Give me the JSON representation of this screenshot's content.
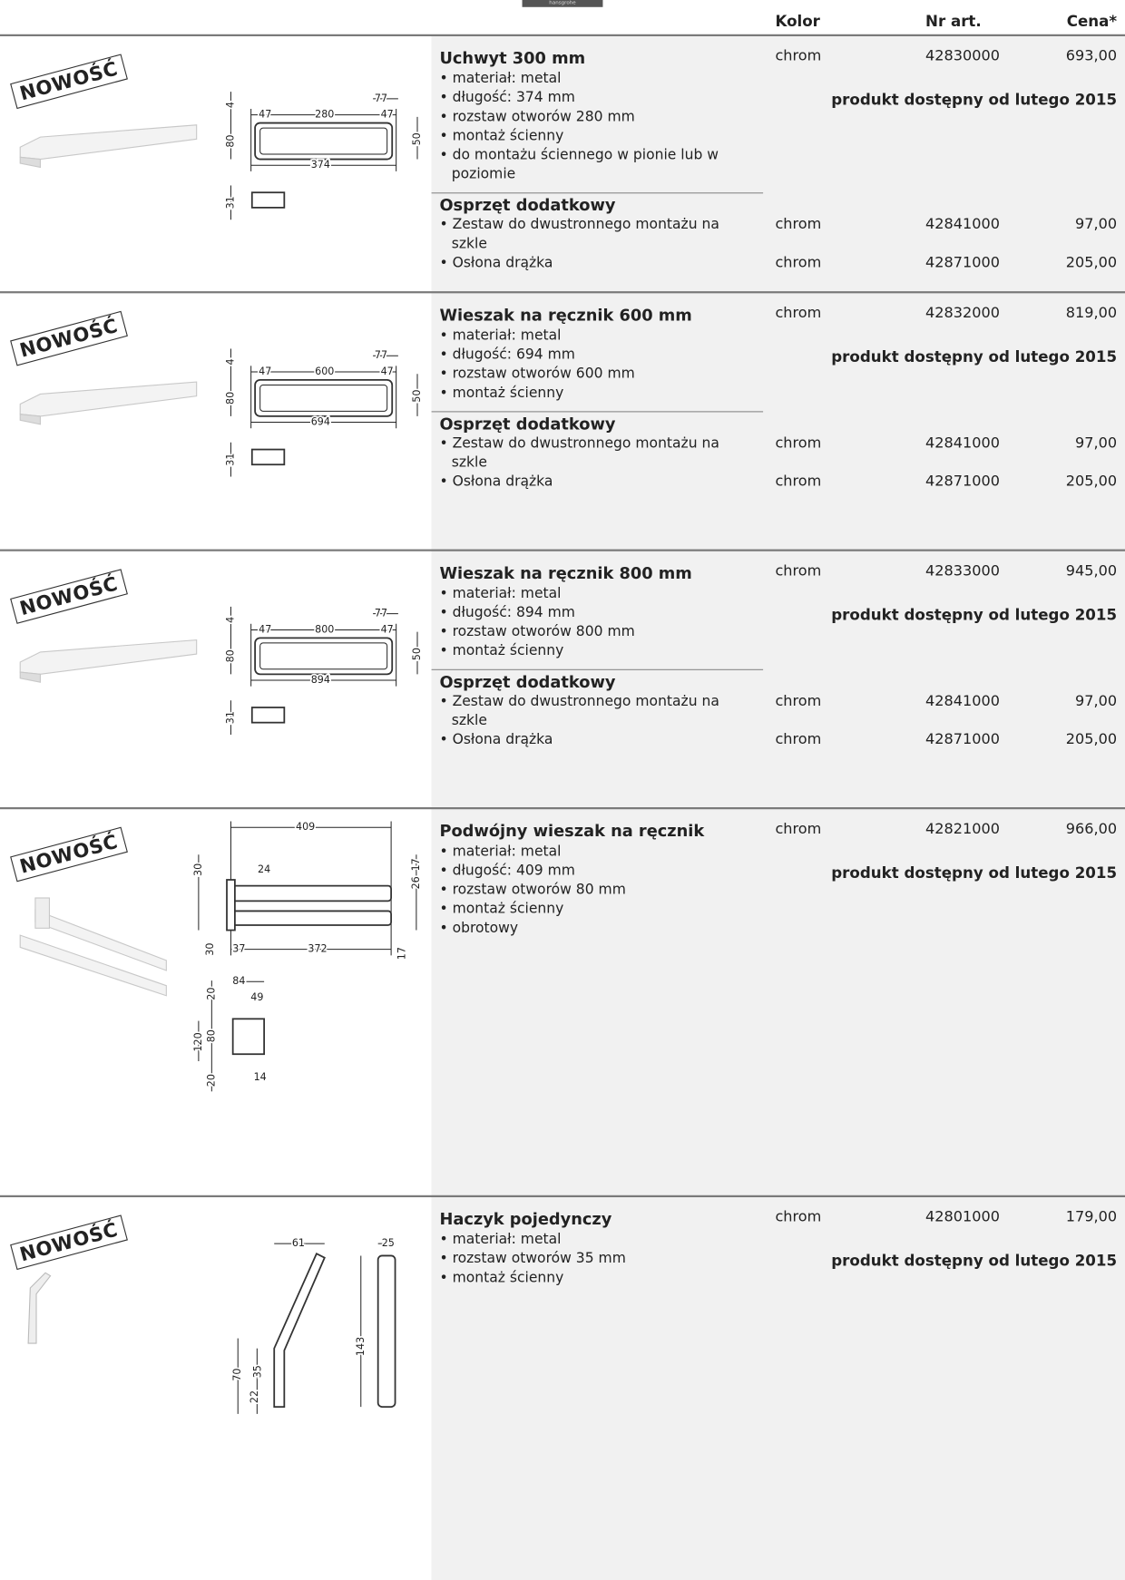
{
  "header": {
    "brand": "hansgrohe",
    "columns": [
      "Kolor",
      "Nr art.",
      "Cena*"
    ]
  },
  "products": [
    {
      "badge": "NOWOŚĆ",
      "title": "Uchwyt 300 mm",
      "color": "chrom",
      "article": "42830000",
      "price": "693,00",
      "features": [
        "materiał: metal",
        "długość: 374 mm",
        "rozstaw otworów 280 mm",
        "montaż ścienny",
        "do montażu ściennego w pionie lub w poziomie"
      ],
      "availability": "produkt dostępny od lutego 2015",
      "accessories_title": "Osprzęt dodatkowy",
      "accessories": [
        {
          "name": "Zestaw do dwustronnego montażu na szkle",
          "color": "chrom",
          "article": "42841000",
          "price": "97,00"
        },
        {
          "name": "Osłona drążka",
          "color": "chrom",
          "article": "42871000",
          "price": "205,00"
        }
      ],
      "dimensions": [
        "4",
        "47",
        "280",
        "77",
        "47",
        "80",
        "50",
        "374",
        "31"
      ]
    },
    {
      "badge": "NOWOŚĆ",
      "title": "Wieszak na ręcznik 600 mm",
      "color": "chrom",
      "article": "42832000",
      "price": "819,00",
      "features": [
        "materiał: metal",
        "długość: 694 mm",
        "rozstaw otworów 600 mm",
        "montaż ścienny"
      ],
      "availability": "produkt dostępny od lutego 2015",
      "accessories_title": "Osprzęt dodatkowy",
      "accessories": [
        {
          "name": "Zestaw do dwustronnego montażu na szkle",
          "color": "chrom",
          "article": "42841000",
          "price": "97,00"
        },
        {
          "name": "Osłona drążka",
          "color": "chrom",
          "article": "42871000",
          "price": "205,00"
        }
      ],
      "dimensions": [
        "4",
        "47",
        "600",
        "77",
        "47",
        "80",
        "50",
        "694",
        "31"
      ]
    },
    {
      "badge": "NOWOŚĆ",
      "title": "Wieszak na ręcznik 800 mm",
      "color": "chrom",
      "article": "42833000",
      "price": "945,00",
      "features": [
        "materiał: metal",
        "długość: 894 mm",
        "rozstaw otworów 800 mm",
        "montaż ścienny"
      ],
      "availability": "produkt dostępny od lutego 2015",
      "accessories_title": "Osprzęt dodatkowy",
      "accessories": [
        {
          "name": "Zestaw do dwustronnego montażu na szkle",
          "color": "chrom",
          "article": "42841000",
          "price": "97,00"
        },
        {
          "name": "Osłona drążka",
          "color": "chrom",
          "article": "42871000",
          "price": "205,00"
        }
      ],
      "dimensions": [
        "4",
        "47",
        "800",
        "77",
        "47",
        "80",
        "50",
        "894",
        "31"
      ]
    },
    {
      "badge": "NOWOŚĆ",
      "title": "Podwójny wieszak na ręcznik",
      "color": "chrom",
      "article": "42821000",
      "price": "966,00",
      "features": [
        "materiał: metal",
        "długość: 409 mm",
        "rozstaw otworów 80 mm",
        "montaż ścienny",
        "obrotowy"
      ],
      "availability": "produkt dostępny od lutego 2015",
      "dimensions": [
        "409",
        "30",
        "24",
        "17",
        "26",
        "30",
        "37",
        "372",
        "17",
        "20",
        "84",
        "49",
        "120",
        "80",
        "20",
        "14"
      ]
    },
    {
      "badge": "NOWOŚĆ",
      "title": "Haczyk pojedynczy",
      "color": "chrom",
      "article": "42801000",
      "price": "179,00",
      "features": [
        "materiał: metal",
        "rozstaw otworów 35 mm",
        "montaż ścienny"
      ],
      "availability": "produkt dostępny od lutego 2015",
      "dimensions": [
        "61",
        "25",
        "143",
        "70",
        "35",
        "22"
      ]
    }
  ]
}
